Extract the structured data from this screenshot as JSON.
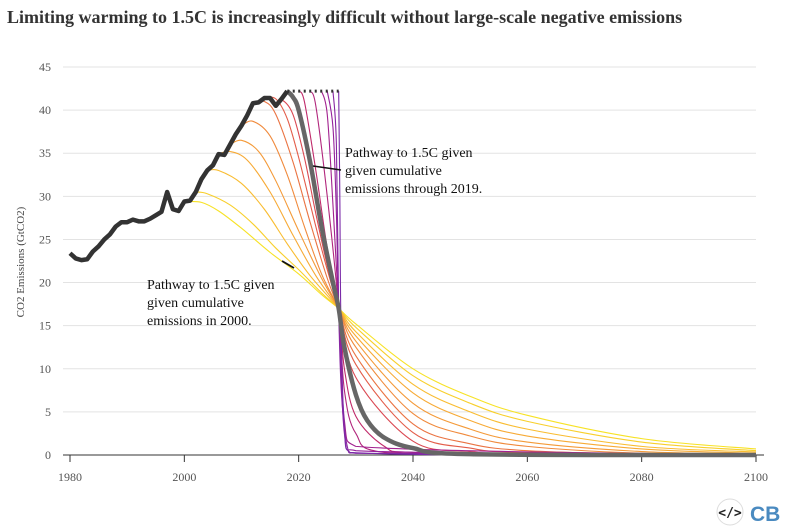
{
  "chart_data": {
    "type": "line",
    "title": "Limiting warming to 1.5C is increasingly difficult without large-scale negative emissions",
    "xlabel": "",
    "ylabel": "CO2 Emissions (GtCO2)",
    "xlim": [
      1980,
      2100
    ],
    "ylim": [
      0,
      45
    ],
    "xticks": [
      1980,
      2000,
      2020,
      2040,
      2060,
      2080,
      2100
    ],
    "yticks": [
      0,
      5,
      10,
      15,
      20,
      25,
      30,
      35,
      40,
      45
    ],
    "grid": "horizontal",
    "legend": "none",
    "historical": {
      "color": "#333333",
      "x": [
        1980,
        1981,
        1982,
        1983,
        1984,
        1985,
        1986,
        1987,
        1988,
        1989,
        1990,
        1991,
        1992,
        1993,
        1994,
        1995,
        1996,
        1997,
        1998,
        1999,
        2000,
        2001,
        2002,
        2003,
        2004,
        2005,
        2006,
        2007,
        2008,
        2009,
        2010,
        2011,
        2012,
        2013,
        2014,
        2015,
        2016,
        2017,
        2018
      ],
      "y": [
        23.4,
        22.8,
        22.6,
        22.7,
        23.6,
        24.2,
        25.0,
        25.6,
        26.5,
        27.0,
        27.0,
        27.3,
        27.1,
        27.1,
        27.4,
        27.8,
        28.2,
        30.5,
        28.5,
        28.3,
        29.4,
        29.5,
        30.5,
        32.0,
        33.0,
        33.6,
        34.9,
        34.8,
        36.0,
        37.2,
        38.2,
        39.4,
        40.8,
        40.9,
        41.4,
        41.4,
        40.5,
        41.3,
        42.2
      ]
    },
    "constant_extension": {
      "x": [
        2018,
        2027
      ],
      "y": [
        42.2,
        42.2
      ],
      "style": "dotted",
      "color": "#333333"
    },
    "color_stops": [
      "#f7e225",
      "#f9b233",
      "#f08a3c",
      "#e0504c",
      "#c02a6a",
      "#9a1f98",
      "#7a2aa8"
    ],
    "highlight_color": "#666666",
    "series": [
      {
        "start": 2000,
        "x": [
          2000,
          2003,
          2006,
          2010,
          2015,
          2020,
          2024,
          2027,
          2030,
          2040,
          2050,
          2060,
          2080,
          2100
        ],
        "y": [
          29.4,
          29.3,
          28.3,
          26.3,
          23.5,
          21.0,
          18.6,
          17,
          15.2,
          10,
          6.8,
          4.6,
          1.9,
          0.7
        ]
      },
      {
        "start": 2002,
        "x": [
          2002,
          2004,
          2008,
          2012,
          2016,
          2020,
          2024,
          2027,
          2030,
          2040,
          2050,
          2060,
          2080,
          2100
        ],
        "y": [
          30.5,
          30.3,
          29.0,
          26.8,
          24.0,
          21.5,
          18.8,
          17,
          14.8,
          9.2,
          6.0,
          3.9,
          1.5,
          0.5
        ]
      },
      {
        "start": 2004,
        "x": [
          2004,
          2006,
          2010,
          2014,
          2018,
          2022,
          2027,
          2030,
          2040,
          2050,
          2060,
          2080,
          2100
        ],
        "y": [
          33.0,
          33.0,
          31.5,
          28.5,
          24.5,
          20.8,
          17,
          14.3,
          8.2,
          5.0,
          3.0,
          1.0,
          0.35
        ]
      },
      {
        "start": 2006,
        "x": [
          2006,
          2008,
          2011,
          2015,
          2019,
          2023,
          2027,
          2030,
          2040,
          2050,
          2060,
          2080,
          2100
        ],
        "y": [
          34.9,
          35.2,
          34.2,
          30.5,
          25.5,
          20.8,
          17,
          13.8,
          7.2,
          4.0,
          2.2,
          0.7,
          0.2
        ]
      },
      {
        "start": 2008,
        "x": [
          2008,
          2010,
          2013,
          2016,
          2020,
          2024,
          2027,
          2030,
          2040,
          2050,
          2060,
          2080,
          2100
        ],
        "y": [
          36.0,
          36.5,
          35.2,
          31.8,
          26.0,
          20.5,
          17,
          13.2,
          6.0,
          3.0,
          1.5,
          0.4,
          0.1
        ]
      },
      {
        "start": 2010,
        "x": [
          2010,
          2012,
          2015,
          2018,
          2021,
          2024,
          2027,
          2030,
          2040,
          2050,
          2060,
          2080,
          2100
        ],
        "y": [
          38.2,
          38.7,
          37.0,
          32.5,
          26.5,
          21.0,
          17,
          12.5,
          4.8,
          2.2,
          1.0,
          0.2,
          0.05
        ]
      },
      {
        "start": 2012,
        "x": [
          2012,
          2014,
          2016,
          2019,
          2022,
          2025,
          2027,
          2030,
          2040,
          2050,
          2060,
          2080,
          2100
        ],
        "y": [
          40.8,
          41.0,
          39.5,
          34.0,
          27.0,
          20.5,
          17,
          11.5,
          3.6,
          1.3,
          0.5,
          0.1,
          0
        ]
      },
      {
        "start": 2014,
        "x": [
          2014,
          2016,
          2018,
          2020,
          2023,
          2025,
          2027,
          2030,
          2040,
          2050,
          2060,
          2100
        ],
        "y": [
          41.4,
          41.3,
          39.0,
          34.5,
          26.5,
          21.5,
          17,
          10.5,
          2.6,
          0.8,
          0.3,
          0
        ]
      },
      {
        "start": 2016,
        "x": [
          2016,
          2017,
          2019,
          2021,
          2023,
          2025,
          2027,
          2030,
          2040,
          2050,
          2060,
          2100
        ],
        "y": [
          40.5,
          41.2,
          39.5,
          34.5,
          28.0,
          22.0,
          17,
          9.0,
          1.6,
          0.4,
          0.1,
          0
        ]
      },
      {
        "start": 2018,
        "highlight": true,
        "x": [
          2018,
          2019,
          2020,
          2022,
          2024,
          2026,
          2027,
          2028,
          2030,
          2032,
          2035,
          2040,
          2050,
          2100
        ],
        "y": [
          42.2,
          41.5,
          40.0,
          34.0,
          26.5,
          20.0,
          17,
          12.5,
          7.0,
          4.0,
          2.0,
          0.8,
          0.1,
          0
        ]
      },
      {
        "start": 2020,
        "x": [
          2020,
          2021,
          2023,
          2025,
          2027,
          2028,
          2030,
          2035,
          2040,
          2100
        ],
        "y": [
          42.2,
          41.0,
          33.0,
          24.0,
          17,
          10.0,
          4.5,
          1.0,
          0.3,
          0
        ]
      },
      {
        "start": 2022,
        "x": [
          2022,
          2023,
          2025,
          2027,
          2028,
          2030,
          2035,
          2100
        ],
        "y": [
          42.2,
          40.5,
          30.0,
          17,
          7.5,
          2.5,
          0.3,
          0
        ]
      },
      {
        "start": 2024,
        "x": [
          2024,
          2025,
          2026,
          2027,
          2028,
          2030,
          2100
        ],
        "y": [
          42.2,
          39.5,
          29.0,
          17,
          4.0,
          1.0,
          0
        ]
      },
      {
        "start": 2025,
        "x": [
          2025,
          2026,
          2026.6,
          2027,
          2028,
          2030,
          2100
        ],
        "y": [
          42.2,
          38.0,
          28.0,
          17,
          2.5,
          0.5,
          0
        ]
      },
      {
        "start": 2026,
        "x": [
          2026,
          2026.6,
          2027,
          2027.5,
          2028.5,
          2030,
          2100
        ],
        "y": [
          42.2,
          36.0,
          17,
          7.0,
          1.0,
          0.2,
          0
        ]
      },
      {
        "start": 2027,
        "x": [
          2027,
          2027.2,
          2027.4,
          2028,
          2029,
          2100
        ],
        "y": [
          42.2,
          30.0,
          15.0,
          3.0,
          0.3,
          0
        ]
      }
    ],
    "annotations": [
      {
        "lines": [
          "Pathway to 1.5C given",
          "given cumulative",
          "emissions through 2019."
        ],
        "points_to_year": 2022
      },
      {
        "lines": [
          "Pathway to 1.5C given",
          "given cumulative",
          "emissions in 2000."
        ],
        "points_to_year": 2020
      }
    ]
  },
  "branding": {
    "embed_icon": "code-icon",
    "logo_text": "CB",
    "logo_color": "#4a8ac0"
  }
}
